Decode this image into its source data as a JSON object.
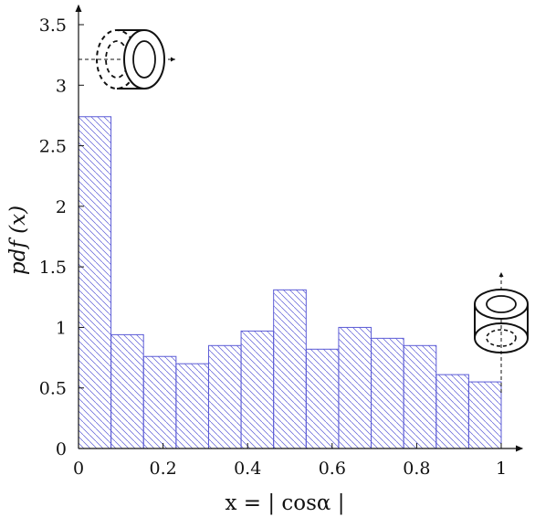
{
  "chart_data": {
    "type": "bar",
    "subtype": "histogram",
    "xlabel": "x = | cosα |",
    "ylabel": "pdf (x)",
    "xlim": [
      0,
      1
    ],
    "ylim": [
      0,
      3.5
    ],
    "x_ticks": [
      "0",
      "0.2",
      "0.4",
      "0.6",
      "0.8",
      "1"
    ],
    "y_ticks": [
      "0",
      "0.5",
      "1",
      "1.5",
      "2",
      "2.5",
      "3",
      "3.5"
    ],
    "bin_width": 0.0769,
    "bin_edges": [
      0,
      0.0769,
      0.1538,
      0.2308,
      0.3077,
      0.3846,
      0.4615,
      0.5385,
      0.6154,
      0.6923,
      0.7692,
      0.8462,
      0.9231,
      1.0
    ],
    "values": [
      2.74,
      0.94,
      0.76,
      0.7,
      0.85,
      0.97,
      1.31,
      0.82,
      1.0,
      0.91,
      0.85,
      0.61,
      0.55
    ],
    "bar_fill": "hatched",
    "bar_color": "#5b5bd6",
    "grid": false,
    "legend": "none",
    "annotations": [
      {
        "icon": "ring-horizontal-axis-icon",
        "placement": "top-left"
      },
      {
        "icon": "ring-vertical-axis-icon",
        "placement": "right"
      }
    ]
  }
}
